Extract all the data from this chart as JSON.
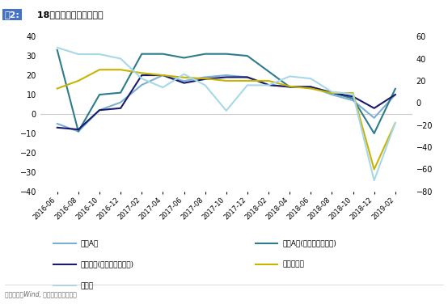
{
  "title_prefix": "图2:",
  "title_text": " 18年四季度盈利大幅下滑",
  "source": "资料来源：Wind, 长城证券研究所整理",
  "x_labels": [
    "2016-06",
    "2016-08",
    "2016-10",
    "2016-12",
    "2017-02",
    "2017-04",
    "2017-06",
    "2017-08",
    "2017-10",
    "2017-12",
    "2018-02",
    "2018-04",
    "2018-06",
    "2018-08",
    "2018-10",
    "2018-12",
    "2019-02"
  ],
  "series": [
    {
      "name": "全部A股",
      "color": "#7BAFD4",
      "axis": "left",
      "data": [
        -5,
        -9,
        2,
        6,
        15,
        20,
        17,
        19,
        20,
        19,
        15,
        14,
        14,
        10,
        7,
        -2,
        10
      ]
    },
    {
      "name": "全部A股(非银行石油石化)",
      "color": "#2E7B8C",
      "axis": "left",
      "data": [
        33,
        -9,
        10,
        11,
        31,
        31,
        29,
        31,
        31,
        30,
        22,
        14,
        14,
        11,
        8,
        -10,
        13
      ]
    },
    {
      "name": "全部主板(剔除中小企业板)",
      "color": "#1A1A6E",
      "axis": "left",
      "data": [
        -7,
        -8,
        2,
        3,
        20,
        20,
        16,
        18,
        19,
        19,
        15,
        14,
        14,
        11,
        9,
        3,
        10
      ]
    },
    {
      "name": "中小企业板",
      "color": "#C8B400",
      "axis": "right",
      "data": [
        13,
        20,
        30,
        30,
        27,
        25,
        23,
        22,
        20,
        20,
        20,
        15,
        13,
        9,
        9,
        -60,
        -18
      ]
    },
    {
      "name": "创业板",
      "color": "#A8D8E8",
      "axis": "right",
      "data": [
        50,
        44,
        44,
        40,
        22,
        14,
        26,
        16,
        -7,
        16,
        16,
        24,
        22,
        10,
        8,
        -70,
        -18
      ]
    }
  ],
  "ylim_left": [
    -40,
    40
  ],
  "ylim_right": [
    -80,
    60
  ],
  "yticks_left": [
    -40,
    -30,
    -20,
    -10,
    0,
    10,
    20,
    30,
    40
  ],
  "yticks_right": [
    -80,
    -60,
    -40,
    -20,
    0,
    20,
    40,
    60
  ],
  "background_color": "#FFFFFF",
  "grid_color": "#CCCCCC",
  "title_box_color": "#4472C4",
  "title_box_text_color": "#FFFFFF"
}
